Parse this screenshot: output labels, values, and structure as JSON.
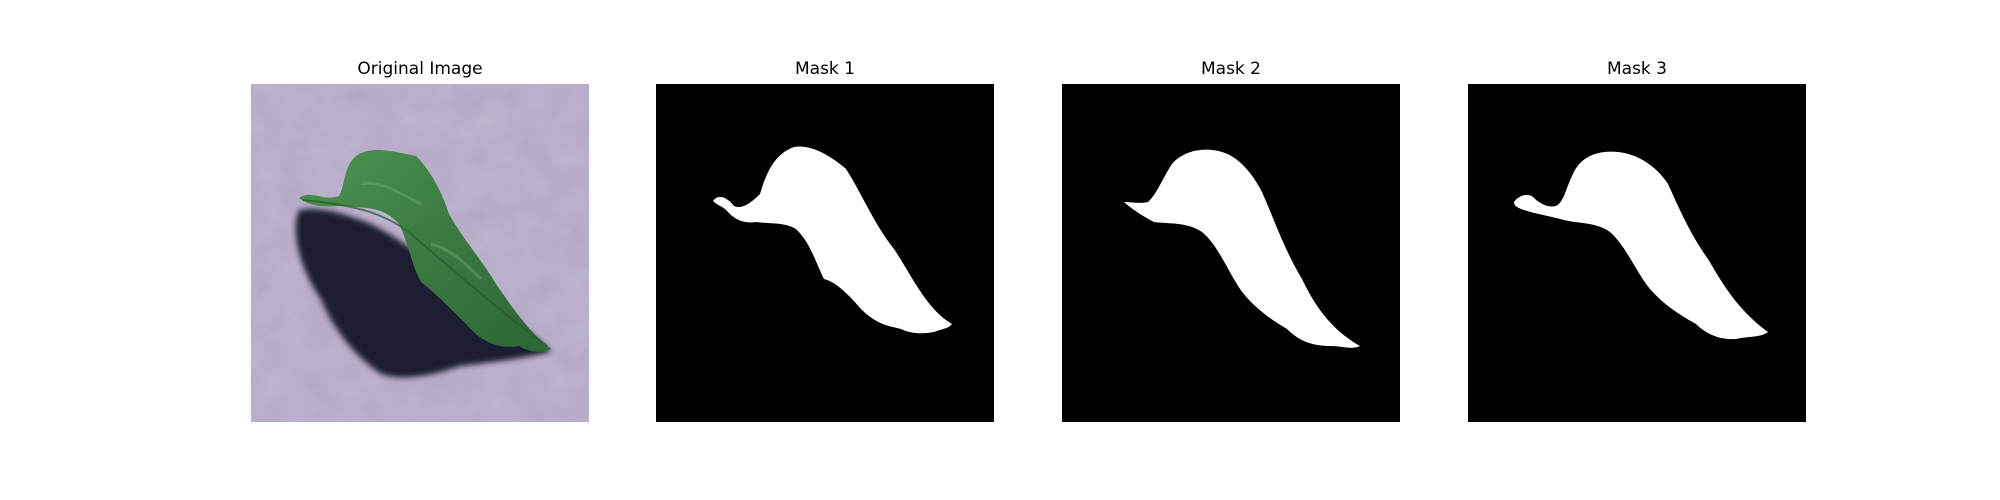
{
  "panels": [
    {
      "title": "Original Image",
      "kind": "photo",
      "subject": "leaf-on-fabric"
    },
    {
      "title": "Mask 1",
      "kind": "mask"
    },
    {
      "title": "Mask 2",
      "kind": "mask"
    },
    {
      "title": "Mask 3",
      "kind": "mask"
    }
  ],
  "colors": {
    "background": "#ffffff",
    "fabric": "#a89bbb",
    "fabric_light": "#c2b8d2",
    "leaf": "#3f7f46",
    "leaf_dark": "#27582c",
    "shadow": "#1a1830",
    "mask_bg": "#000000",
    "mask_fg": "#ffffff"
  }
}
